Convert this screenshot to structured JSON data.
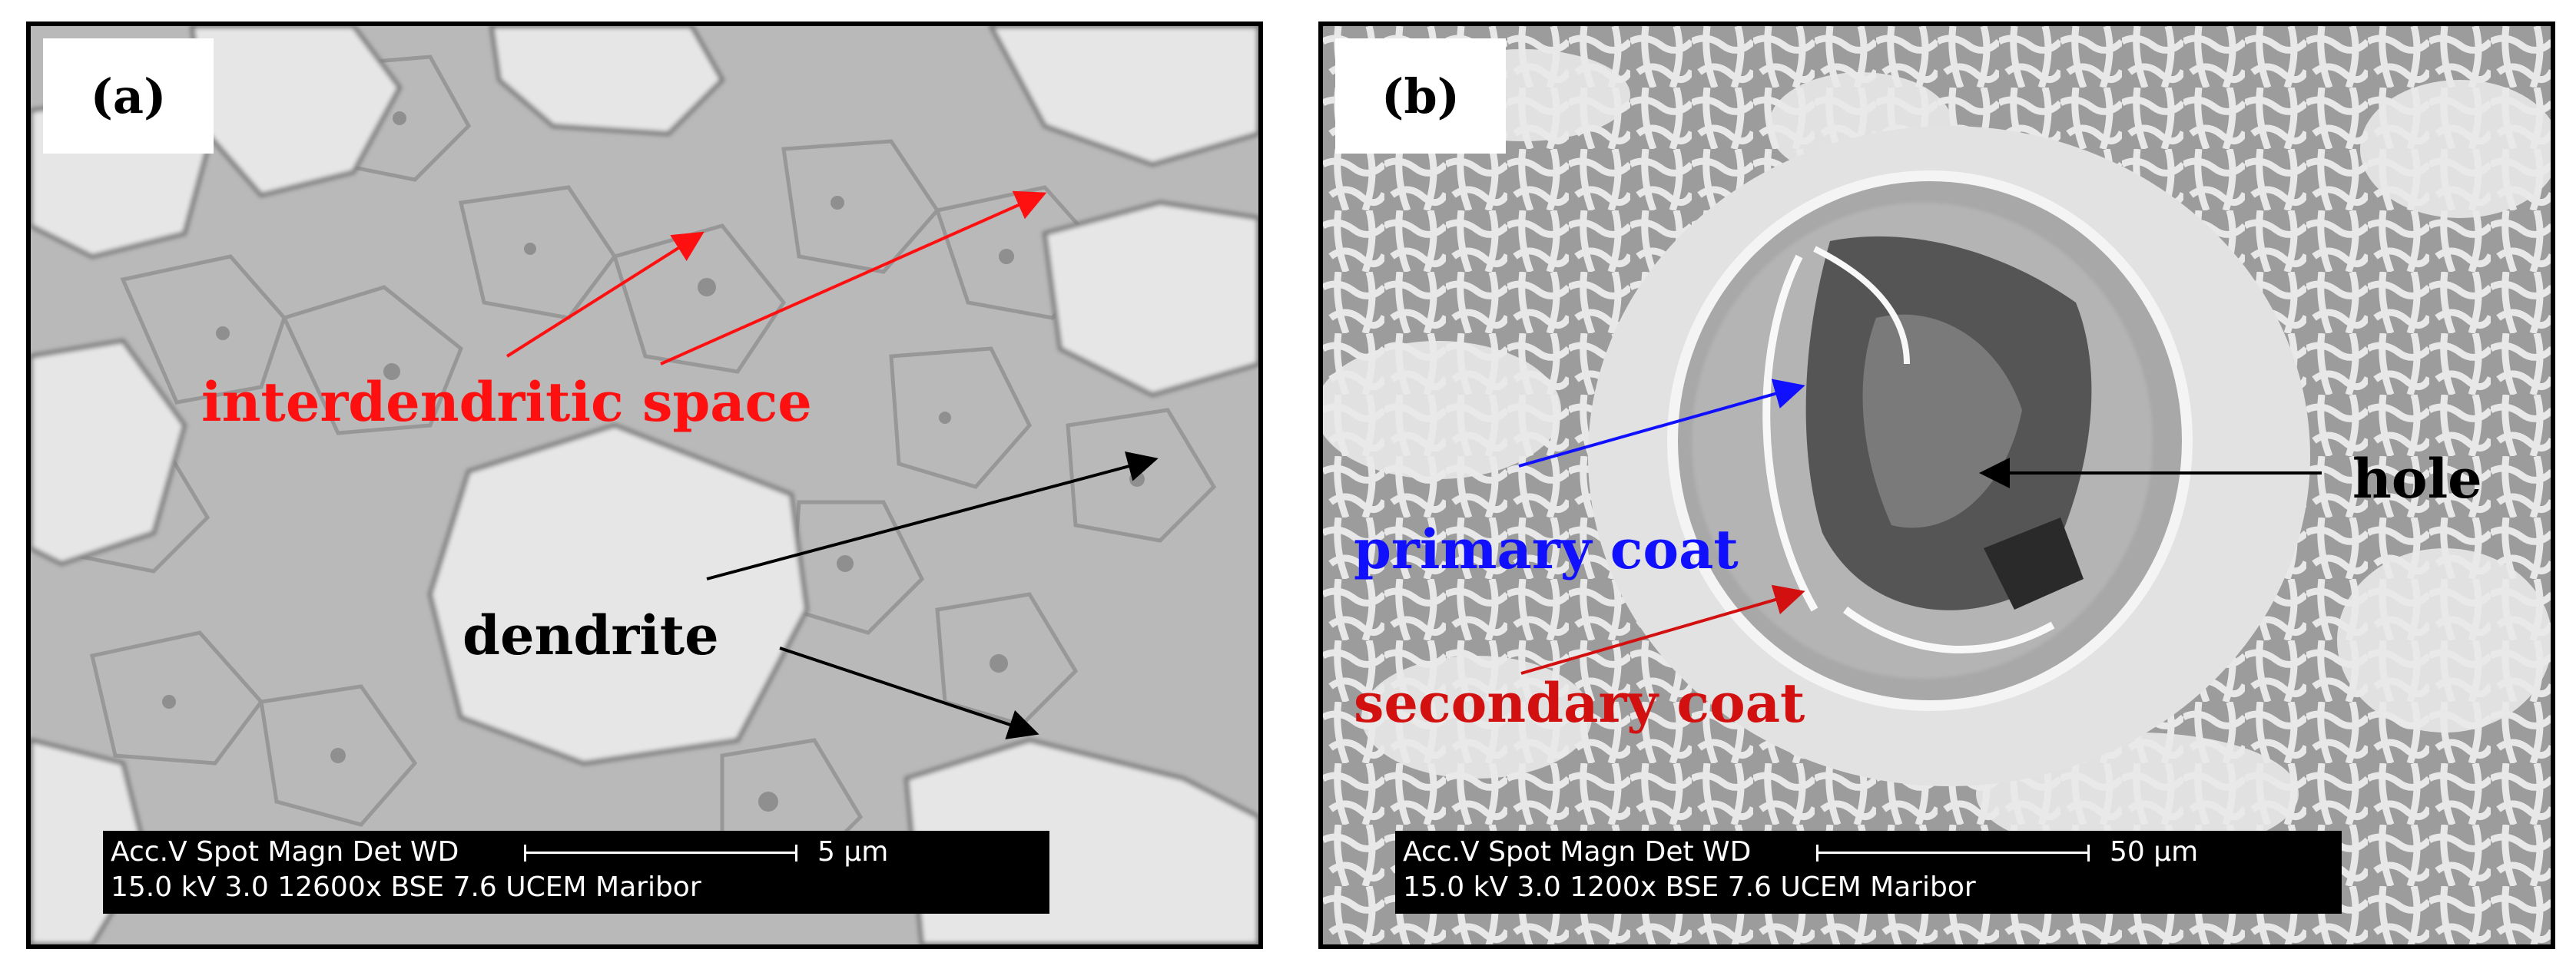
{
  "panel_a": {
    "label": "(a)",
    "annotations": {
      "interdendritic": "interdendritic space",
      "dendrite": "dendrite"
    },
    "databar": {
      "header": "Acc.V   Spot Magn     Det   WD",
      "values": "15.0 kV 3.0    12600x   BSE 7.6    UCEM Maribor",
      "scale_label": "5 µm"
    }
  },
  "panel_b": {
    "label": "(b)",
    "annotations": {
      "hole": "hole",
      "primary": "primary coat",
      "secondary": "secondary coat"
    },
    "databar": {
      "header": "Acc.V   Spot Magn     Det   WD",
      "values": "15.0 kV 3.0    1200x     BSE 7.6    UCEM Maribor",
      "scale_label": "50 µm"
    }
  },
  "colors": {
    "arrow_red": "#ff1010",
    "arrow_black": "#000000",
    "arrow_blue": "#1010ff",
    "arrow_darkred": "#d31010"
  }
}
